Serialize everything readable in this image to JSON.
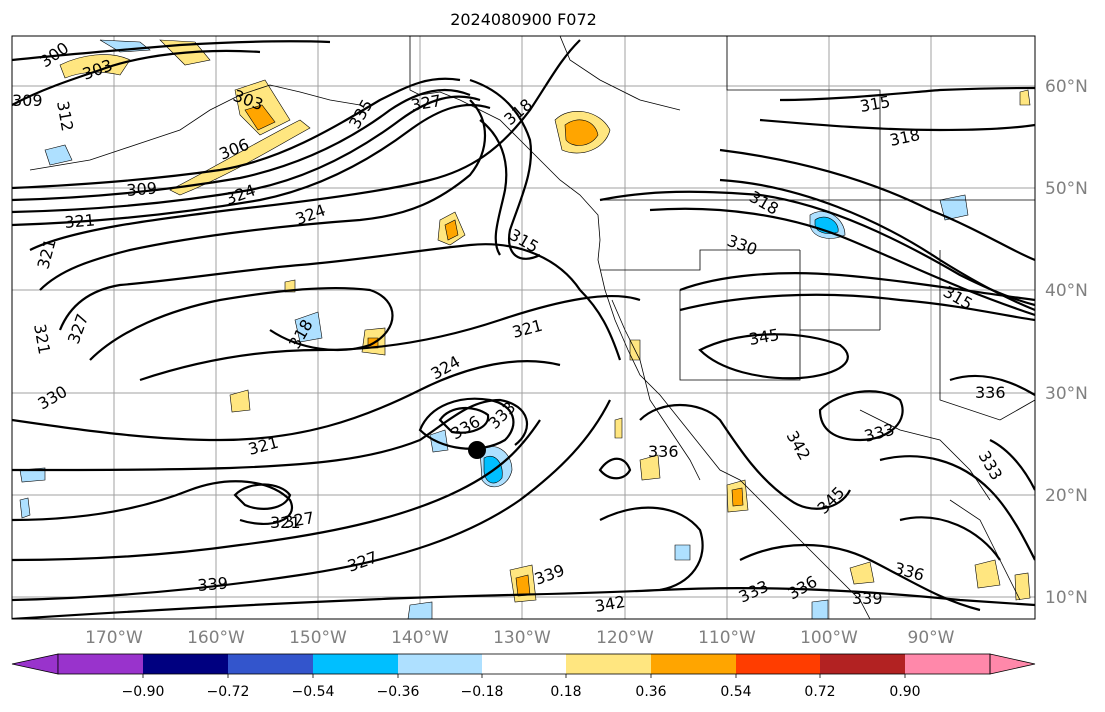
{
  "title": "2024080900 F072",
  "lat_labels": [
    "60°N",
    "50°N",
    "40°N",
    "30°N",
    "20°N",
    "10°N"
  ],
  "lon_labels": [
    "170°W",
    "160°W",
    "150°W",
    "140°W",
    "130°W",
    "120°W",
    "110°W",
    "100°W",
    "90°W"
  ],
  "colorbar": {
    "ticks": [
      "−0.90",
      "−0.72",
      "−0.54",
      "−0.36",
      "−0.18",
      "0.18",
      "0.36",
      "0.54",
      "0.72",
      "0.90"
    ],
    "colors": [
      "#9933cc",
      "#000080",
      "#3355cc",
      "#00bfff",
      "#aee0ff",
      "#ffffff",
      "#ffe680",
      "#ffa500",
      "#ff3d00",
      "#b22222",
      "#ff88aa"
    ]
  },
  "contour_labels": [
    "300",
    "303",
    "309",
    "312",
    "303",
    "306",
    "309",
    "321",
    "324",
    "335",
    "327",
    "318",
    "321",
    "315",
    "318",
    "324",
    "315",
    "318",
    "330",
    "321",
    "327",
    "321",
    "330",
    "318",
    "321",
    "324",
    "333",
    "336",
    "321",
    "327",
    "327",
    "339",
    "342",
    "339",
    "345",
    "342",
    "345",
    "336",
    "336",
    "333",
    "336",
    "333",
    "333",
    "336",
    "339",
    "315"
  ],
  "marker": "storm-center-dot"
}
